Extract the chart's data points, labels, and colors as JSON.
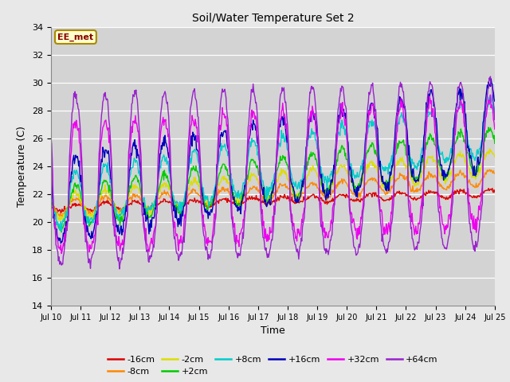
{
  "title": "Soil/Water Temperature Set 2",
  "xlabel": "Time",
  "ylabel": "Temperature (C)",
  "ylim": [
    14,
    34
  ],
  "xlim": [
    0,
    360
  ],
  "fig_bg": "#e8e8e8",
  "plot_bg": "#d3d3d3",
  "annotation_text": "EE_met",
  "annotation_bg": "#ffffcc",
  "annotation_border": "#aa8800",
  "series_order": [
    "-16cm",
    "-8cm",
    "-2cm",
    "+2cm",
    "+8cm",
    "+16cm",
    "+32cm",
    "+64cm"
  ],
  "colors": {
    "-16cm": "#dd0000",
    "-8cm": "#ff8800",
    "-2cm": "#dddd00",
    "+2cm": "#00cc00",
    "+8cm": "#00cccc",
    "+16cm": "#0000bb",
    "+32cm": "#ee00ee",
    "+64cm": "#9922cc"
  },
  "params": {
    "-16cm": {
      "base": 21.0,
      "amp": 0.25,
      "trend": 0.003,
      "phase": 14,
      "noise": 0.08
    },
    "-8cm": {
      "base": 21.0,
      "amp": 0.55,
      "trend": 0.006,
      "phase": 14,
      "noise": 0.1
    },
    "-2cm": {
      "base": 21.0,
      "amp": 0.9,
      "trend": 0.009,
      "phase": 14,
      "noise": 0.12
    },
    "+2cm": {
      "base": 20.9,
      "amp": 1.5,
      "trend": 0.012,
      "phase": 14,
      "noise": 0.15
    },
    "+8cm": {
      "base": 20.8,
      "amp": 2.5,
      "trend": 0.015,
      "phase": 14,
      "noise": 0.2
    },
    "+16cm": {
      "base": 20.5,
      "amp": 4.0,
      "trend": 0.015,
      "phase": 14,
      "noise": 0.25
    },
    "+32cm": {
      "base": 20.5,
      "amp": 6.5,
      "trend": 0.005,
      "phase": 14,
      "noise": 0.3
    },
    "+64cm": {
      "base": 20.5,
      "amp": 8.5,
      "trend": 0.003,
      "phase": 14,
      "noise": 0.2
    }
  },
  "xtick_labels": [
    "Jul 10",
    "Jul 11",
    "Jul 12",
    "Jul 13",
    "Jul 14",
    "Jul 15",
    "Jul 16",
    "Jul 17",
    "Jul 18",
    "Jul 19",
    "Jul 20",
    "Jul 21",
    "Jul 22",
    "Jul 23",
    "Jul 24",
    "Jul 25"
  ],
  "xtick_pos": [
    0,
    24,
    48,
    72,
    96,
    120,
    144,
    168,
    192,
    216,
    240,
    264,
    288,
    312,
    336,
    360
  ],
  "ytick_vals": [
    14,
    16,
    18,
    20,
    22,
    24,
    26,
    28,
    30,
    32,
    34
  ]
}
